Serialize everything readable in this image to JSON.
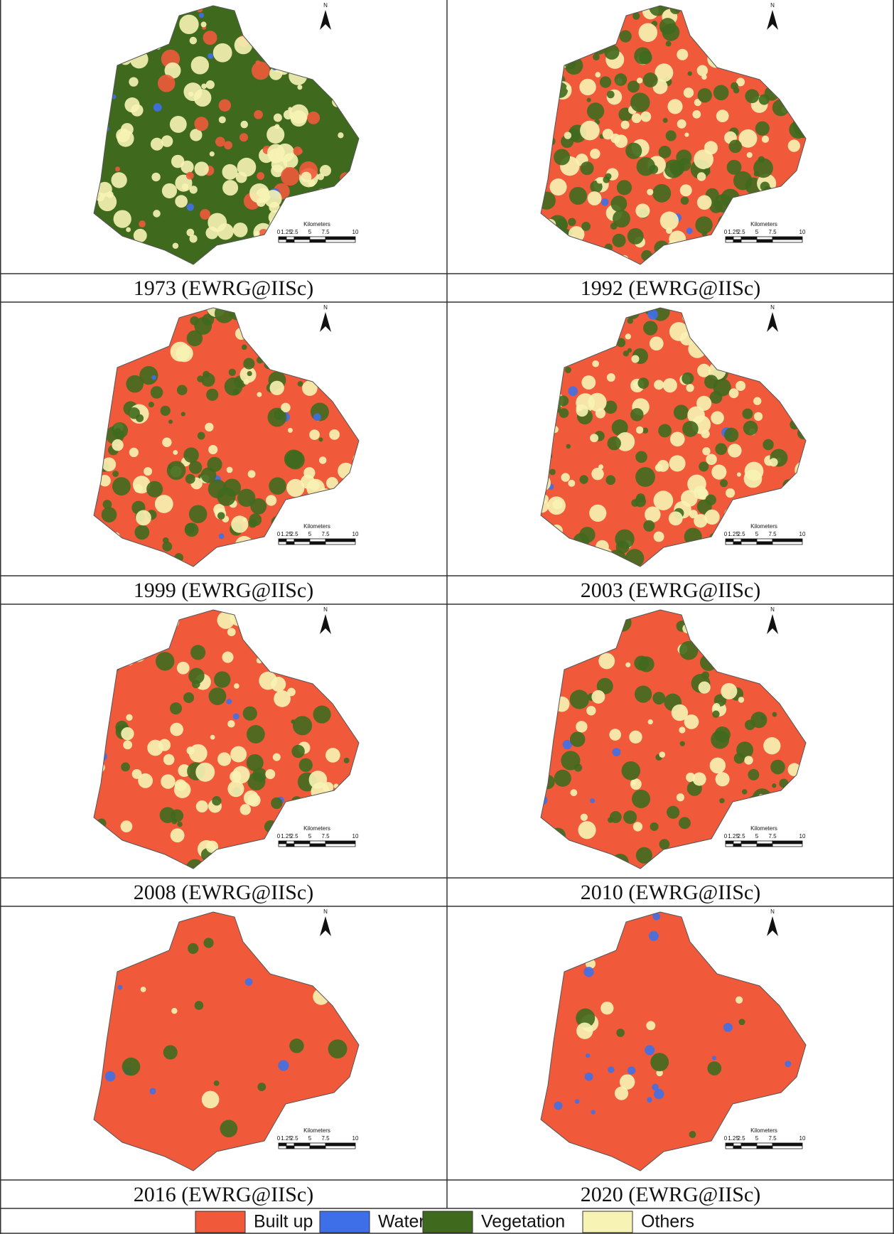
{
  "panels": [
    {
      "caption": "1973 (EWRG@IISc)"
    },
    {
      "caption": "1992 (EWRG@IISc)"
    },
    {
      "caption": "1999 (EWRG@IISc)"
    },
    {
      "caption": "2003 (EWRG@IISc)"
    },
    {
      "caption": "2008 (EWRG@IISc)"
    },
    {
      "caption": "2010 (EWRG@IISc)"
    },
    {
      "caption": "2016 (EWRG@IISc)"
    },
    {
      "caption": "2020 (EWRG@IISc)"
    }
  ],
  "north_label": "N",
  "scale_bar": {
    "title": "Kilometers",
    "ticks": [
      "0",
      "1.25",
      "2.5",
      "5",
      "7.5",
      "10"
    ]
  },
  "legend": [
    {
      "label": "Built up",
      "color": "#f05a3a"
    },
    {
      "label": "Water",
      "color": "#3f6fe8"
    },
    {
      "label": "Vegetation",
      "color": "#3f6a1e"
    },
    {
      "label": "Others",
      "color": "#f7f3b4"
    }
  ]
}
